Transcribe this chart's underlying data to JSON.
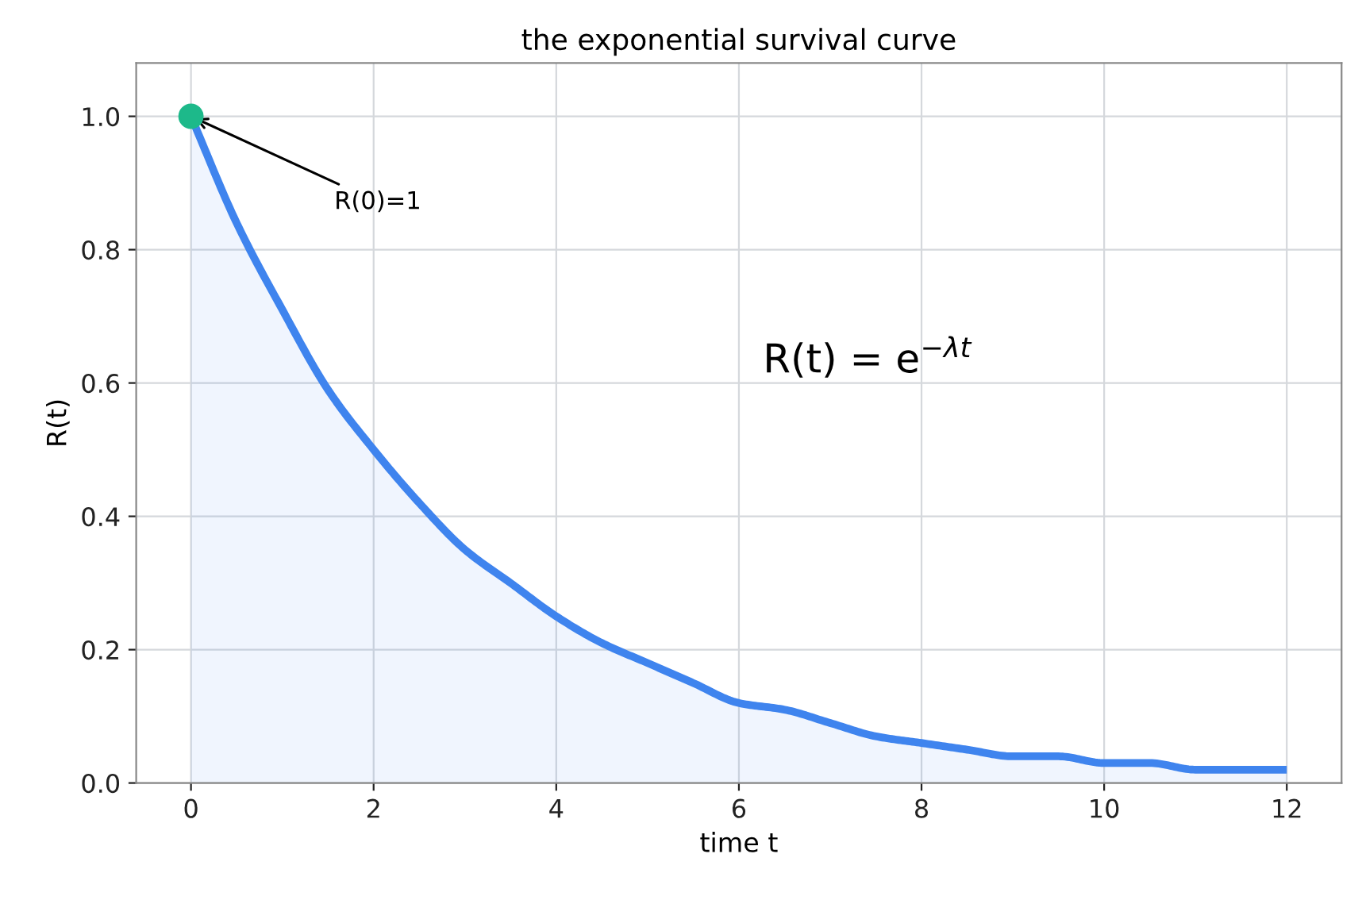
{
  "chart_data": {
    "type": "area",
    "title": "the exponential survival curve",
    "xlabel": "time t",
    "ylabel": "R(t)",
    "xlim": [
      -0.6,
      12.6
    ],
    "xticks": [
      0,
      2,
      4,
      6,
      8,
      10,
      12
    ],
    "ylim": [
      0,
      1.08
    ],
    "yticks": [
      {
        "value": 0,
        "label": "0.0"
      },
      {
        "value": 0.2,
        "label": "0.2"
      },
      {
        "value": 0.4,
        "label": "0.4"
      },
      {
        "value": 0.6,
        "label": "0.6"
      },
      {
        "value": 0.8,
        "label": "0.8"
      },
      {
        "value": 1,
        "label": "1.0"
      }
    ],
    "grid": true,
    "series": [
      {
        "color": "#3f84ee",
        "x": [
          0,
          0.5,
          1,
          1.5,
          2,
          2.5,
          3,
          3.5,
          4,
          4.5,
          5,
          5.5,
          6,
          6.5,
          7,
          7.5,
          8,
          8.5,
          9,
          9.5,
          10,
          10.5,
          11,
          11.5,
          12
        ],
        "values": [
          1.0,
          0.84,
          0.71,
          0.59,
          0.5,
          0.42,
          0.35,
          0.3,
          0.25,
          0.21,
          0.18,
          0.15,
          0.12,
          0.11,
          0.09,
          0.07,
          0.06,
          0.05,
          0.04,
          0.04,
          0.03,
          0.03,
          0.02,
          0.02,
          0.02
        ]
      },
      {
        "type": "scatter",
        "color": "#1db98a",
        "x": [
          0
        ],
        "values": [
          1.0
        ]
      }
    ],
    "annotations": [
      {
        "text": "R(0)=1",
        "x": 0,
        "y": 1.0
      },
      "R(t) = e$^{−λt}$"
    ]
  }
}
